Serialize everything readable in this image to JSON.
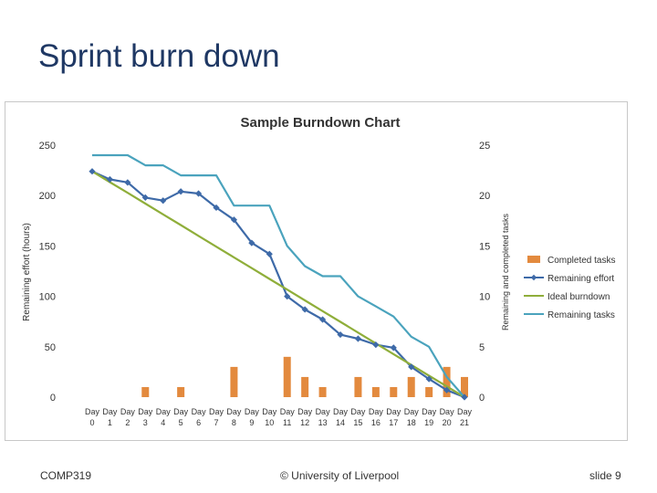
{
  "slide": {
    "title": "Sprint burn down",
    "footer_left": "COMP319",
    "footer_center": "© University of Liverpool",
    "footer_right": "slide 9"
  },
  "colors": {
    "completed_tasks": "#e38a3e",
    "remaining_effort": "#3e6aa8",
    "ideal_burndown": "#8fae3a",
    "remaining_tasks": "#4aa3bd",
    "axis_text": "#333333",
    "title_text": "#1f3864"
  },
  "chart_data": {
    "type": "bar",
    "title": "Sample Burndown Chart",
    "ylabel": "Remaining effort (hours)",
    "y2label": "Remaining and completed tasks",
    "ylim": [
      0,
      250
    ],
    "y2lim": [
      0,
      25
    ],
    "yticks": [
      "0",
      "50",
      "100",
      "150",
      "200",
      "250"
    ],
    "y2ticks": [
      "0",
      "5",
      "10",
      "15",
      "20",
      "25"
    ],
    "legend_position": "right",
    "grid": false,
    "categories": [
      [
        "Day",
        "0"
      ],
      [
        "Day",
        "1"
      ],
      [
        "Day",
        "2"
      ],
      [
        "Day",
        "3"
      ],
      [
        "Day",
        "4"
      ],
      [
        "Day",
        "5"
      ],
      [
        "Day",
        "6"
      ],
      [
        "Day",
        "7"
      ],
      [
        "Day",
        "8"
      ],
      [
        "Day",
        "9"
      ],
      [
        "Day",
        "10"
      ],
      [
        "Day",
        "11"
      ],
      [
        "Day",
        "12"
      ],
      [
        "Day",
        "13"
      ],
      [
        "Day",
        "14"
      ],
      [
        "Day",
        "15"
      ],
      [
        "Day",
        "16"
      ],
      [
        "Day",
        "17"
      ],
      [
        "Day",
        "18"
      ],
      [
        "Day",
        "19"
      ],
      [
        "Day",
        "20"
      ],
      [
        "Day",
        "21"
      ]
    ],
    "series": [
      {
        "name": "Completed tasks",
        "type": "bar",
        "axis": "right",
        "values": [
          0,
          0,
          0,
          1,
          0,
          1,
          0,
          0,
          3,
          0,
          0,
          4,
          2,
          1,
          0,
          2,
          1,
          1,
          2,
          1,
          3,
          2
        ]
      },
      {
        "name": "Remaining effort",
        "type": "line",
        "marker": "diamond",
        "axis": "left",
        "values": [
          224,
          216,
          213,
          198,
          195,
          204,
          202,
          188,
          176,
          153,
          142,
          100,
          87,
          77,
          62,
          58,
          52,
          49,
          30,
          18,
          7,
          0
        ]
      },
      {
        "name": "Ideal burndown",
        "type": "line",
        "axis": "left",
        "values": [
          224,
          213.3,
          202.7,
          192,
          181.3,
          170.7,
          160,
          149.3,
          138.7,
          128,
          117.3,
          106.7,
          96,
          85.3,
          74.7,
          64,
          53.3,
          42.7,
          32,
          21.3,
          10.7,
          0
        ]
      },
      {
        "name": "Remaining tasks",
        "type": "line",
        "axis": "right",
        "values": [
          24,
          24,
          24,
          23,
          23,
          22,
          22,
          22,
          19,
          19,
          19,
          15,
          13,
          12,
          12,
          10,
          9,
          8,
          6,
          5,
          2,
          0
        ]
      }
    ]
  }
}
